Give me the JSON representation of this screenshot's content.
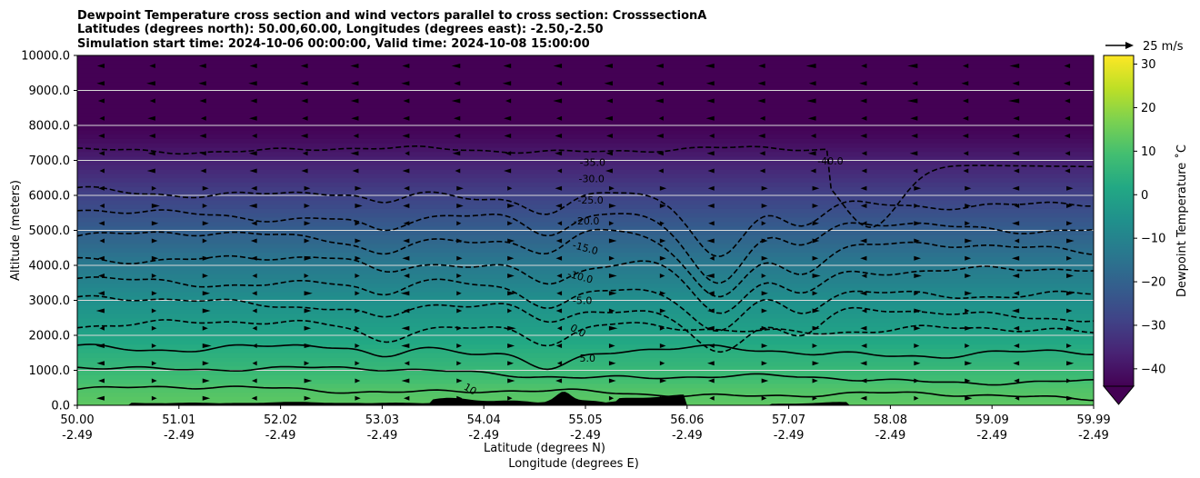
{
  "chart_data": {
    "type": "heatmap",
    "title_lines": [
      "Dewpoint Temperature cross section and wind vectors parallel to cross section: CrosssectionA",
      "Latitudes (degrees north): 50.00,60.00, Longitudes (degrees east): -2.50,-2.50",
      "Simulation start time: 2024-10-06 00:00:00, Valid time: 2024-10-08 15:00:00"
    ],
    "ylabel": "Altitude (meters)",
    "xlabel_line1": "Latitude (degrees N)",
    "xlabel_line2": "Longitude (degrees E)",
    "ylim": [
      0,
      10000
    ],
    "y_ticks": [
      "0.0",
      "1000.0",
      "2000.0",
      "3000.0",
      "4000.0",
      "5000.0",
      "6000.0",
      "7000.0",
      "8000.0",
      "9000.0",
      "10000.0"
    ],
    "y_tick_values": [
      0,
      1000,
      2000,
      3000,
      4000,
      5000,
      6000,
      7000,
      8000,
      9000,
      10000
    ],
    "x_tick_fractions": [
      0.0,
      0.1,
      0.2,
      0.3,
      0.4,
      0.5,
      0.6,
      0.7,
      0.8,
      0.9,
      1.0
    ],
    "x_ticks_lat": [
      "50.00",
      "51.01",
      "52.02",
      "53.03",
      "54.04",
      "55.05",
      "56.06",
      "57.07",
      "58.08",
      "59.09",
      "59.99"
    ],
    "x_ticks_lon": [
      "-2.49",
      "-2.49",
      "-2.49",
      "-2.49",
      "-2.49",
      "-2.49",
      "-2.49",
      "-2.49",
      "-2.49",
      "-2.49",
      "-2.49"
    ],
    "grid": "horizontal",
    "colorbar": {
      "label": "Dewpoint Temperature ˚C",
      "range": [
        -44,
        32
      ],
      "ticks": [
        "30",
        "20",
        "10",
        "0",
        "−10",
        "−20",
        "−30",
        "−40"
      ],
      "tick_values": [
        30,
        20,
        10,
        0,
        -10,
        -20,
        -30,
        -40
      ],
      "extend": "min",
      "colors": [
        "#440154",
        "#482374",
        "#404387",
        "#345e8d",
        "#29788e",
        "#20908c",
        "#22a884",
        "#42be71",
        "#7ad151",
        "#bddf26",
        "#fde725"
      ]
    },
    "quiver_key": {
      "label": "25 m/s",
      "speed": 25
    },
    "contour_levels": [
      10,
      5,
      0,
      -5,
      -10,
      -15,
      -20,
      -25,
      -30,
      -35,
      -40
    ],
    "contour_labels": [
      {
        "text": "-35.0",
        "x_frac": 0.507,
        "alt": 6850
      },
      {
        "text": "-30.0",
        "x_frac": 0.506,
        "alt": 6380
      },
      {
        "text": "-25.0",
        "x_frac": 0.505,
        "alt": 5770
      },
      {
        "text": "-20.0",
        "x_frac": 0.501,
        "alt": 5170
      },
      {
        "text": "-15.0",
        "x_frac": 0.499,
        "alt": 4400
      },
      {
        "text": "-10.0",
        "x_frac": 0.494,
        "alt": 3580
      },
      {
        "text": "-5.0",
        "x_frac": 0.497,
        "alt": 2900
      },
      {
        "text": "0.0",
        "x_frac": 0.491,
        "alt": 2050
      },
      {
        "text": "5.0",
        "x_frac": 0.502,
        "alt": 1250
      },
      {
        "text": "10",
        "x_frac": 0.385,
        "alt": 380
      },
      {
        "text": "-40.0",
        "x_frac": 0.741,
        "alt": 6880
      }
    ]
  }
}
